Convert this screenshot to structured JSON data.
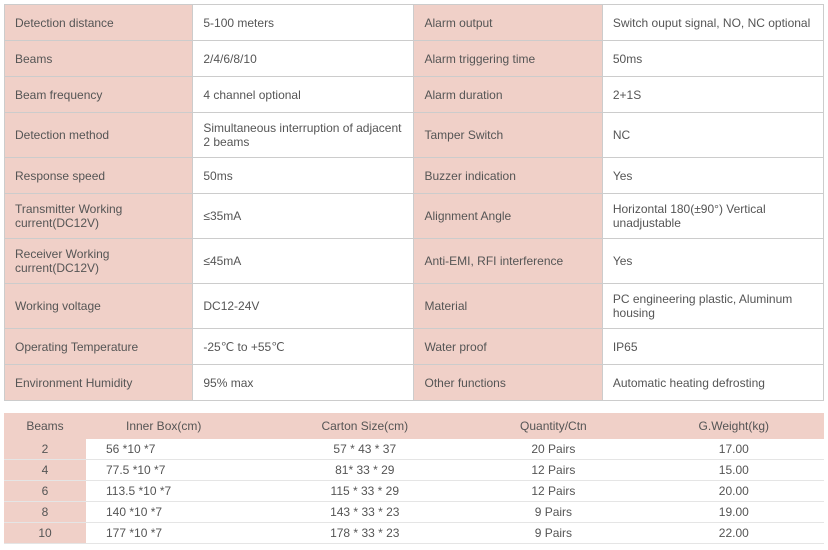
{
  "specs": {
    "rows": [
      {
        "label1": "Detection distance",
        "value1": "5-100 meters",
        "label2": "Alarm output",
        "value2": "Switch ouput signal, NO, NC optional"
      },
      {
        "label1": "Beams",
        "value1": "2/4/6/8/10",
        "label2": "Alarm triggering time",
        "value2": "50ms"
      },
      {
        "label1": "Beam frequency",
        "value1": "4 channel optional",
        "label2": "Alarm duration",
        "value2": "2+1S"
      },
      {
        "label1": "Detection method",
        "value1": "Simultaneous interruption of adjacent 2 beams",
        "label2": "Tamper Switch",
        "value2": "NC"
      },
      {
        "label1": "Response speed",
        "value1": "50ms",
        "label2": "Buzzer indication",
        "value2": "Yes"
      },
      {
        "label1": "Transmitter Working current(DC12V)",
        "value1": "≤35mA",
        "label2": "Alignment Angle",
        "value2": "Horizontal 180(±90°) Vertical unadjustable"
      },
      {
        "label1": "Receiver Working current(DC12V)",
        "value1": "≤45mA",
        "label2": "Anti-EMI, RFI interference",
        "value2": "Yes"
      },
      {
        "label1": "Working voltage",
        "value1": "DC12-24V",
        "label2": "Material",
        "value2": "PC engineering plastic, Aluminum housing"
      },
      {
        "label1": "Operating Temperature",
        "value1": "-25℃ to +55℃",
        "label2": "Water proof",
        "value2": "IP65"
      },
      {
        "label1": "Environment Humidity",
        "value1": "95% max",
        "label2": "Other functions",
        "value2": "Automatic heating defrosting"
      }
    ]
  },
  "packing": {
    "headers": {
      "beams": "Beams",
      "inner_box": "Inner Box(cm)",
      "carton": "Carton Size(cm)",
      "qty": "Quantity/Ctn",
      "weight": "G.Weight(kg)"
    },
    "rows": [
      {
        "beams": "2",
        "inner_box": "56 *10 *7",
        "carton": "57 * 43 * 37",
        "qty": "20 Pairs",
        "weight": "17.00"
      },
      {
        "beams": "4",
        "inner_box": "77.5 *10 *7",
        "carton": "81* 33 * 29",
        "qty": "12 Pairs",
        "weight": "15.00"
      },
      {
        "beams": "6",
        "inner_box": "113.5 *10 *7",
        "carton": "115 * 33 * 29",
        "qty": "12 Pairs",
        "weight": "20.00"
      },
      {
        "beams": "8",
        "inner_box": "140 *10 *7",
        "carton": "143 * 33 * 23",
        "qty": "9 Pairs",
        "weight": "19.00"
      },
      {
        "beams": "10",
        "inner_box": "177 *10 *7",
        "carton": "178 * 33 * 23",
        "qty": "9 Pairs",
        "weight": "22.00"
      }
    ]
  },
  "colors": {
    "label_bg": "#f0d0c8",
    "value_bg": "#ffffff",
    "border": "#cccccc",
    "text": "#555555"
  }
}
